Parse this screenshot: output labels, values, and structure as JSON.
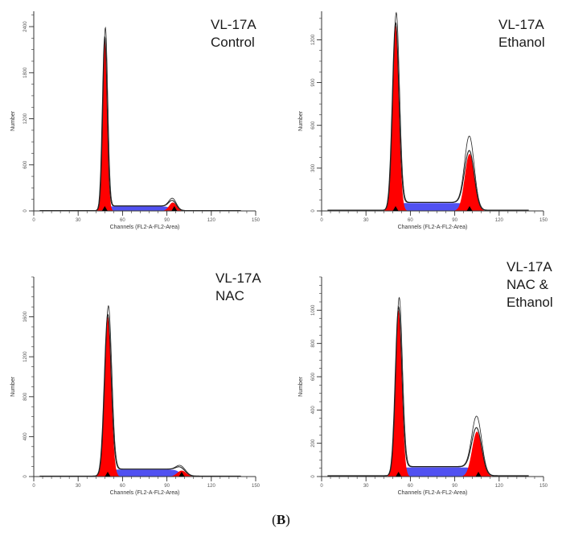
{
  "figure": {
    "panel_letter": "B",
    "colors": {
      "g1_g2_fill": "#ff0000",
      "s_phase_fill": "#3333ee",
      "histogram_line": "#222222",
      "axis": "#333333",
      "marker": "#000000"
    }
  },
  "chart_data": [
    {
      "type": "area",
      "condition_lines": [
        "VL-17A",
        "Control"
      ],
      "xlabel": "Channels (FL2-A-FL2-Area)",
      "ylabel": "Number",
      "xlim": [
        0,
        150
      ],
      "ylim": [
        0,
        2600
      ],
      "x_ticks": [
        0,
        30,
        60,
        90,
        120,
        150
      ],
      "y_ticks": [
        0,
        600,
        1200,
        1800,
        2400
      ],
      "g1_peak": {
        "channel": 48,
        "height": 2250,
        "width": 1.6
      },
      "g2_peak": {
        "channel": 94,
        "height": 110,
        "width": 2.5
      },
      "s_phase_level": 60,
      "markers": [
        48,
        95
      ]
    },
    {
      "type": "area",
      "condition_lines": [
        "VL-17A",
        "Ethanol"
      ],
      "xlabel": "Channels (FL2-A-FL2-Area)",
      "ylabel": "Number",
      "xlim": [
        0,
        150
      ],
      "ylim": [
        0,
        1400
      ],
      "x_ticks": [
        0,
        30,
        60,
        90,
        120,
        150
      ],
      "y_ticks": [
        0,
        300,
        600,
        900,
        1200
      ],
      "g1_peak": {
        "channel": 50,
        "height": 1300,
        "width": 2.2
      },
      "g2_peak": {
        "channel": 100,
        "height": 400,
        "width": 3.2
      },
      "s_phase_level": 55,
      "markers": [
        50,
        100
      ]
    },
    {
      "type": "area",
      "condition_lines": [
        "VL-17A",
        "NAC"
      ],
      "xlabel": "Channels (FL2-A-FL2-Area)",
      "ylabel": "Number",
      "xlim": [
        0,
        150
      ],
      "ylim": [
        0,
        2000
      ],
      "x_ticks": [
        0,
        30,
        60,
        90,
        120,
        150
      ],
      "y_ticks": [
        0,
        400,
        800,
        1200,
        1600
      ],
      "g1_peak": {
        "channel": 50,
        "height": 1600,
        "width": 2.3
      },
      "g2_peak": {
        "channel": 100,
        "height": 60,
        "width": 3.0
      },
      "s_phase_level": 70,
      "markers": [
        50,
        100
      ]
    },
    {
      "type": "area",
      "condition_lines": [
        "VL-17A",
        "NAC &",
        "Ethanol"
      ],
      "xlabel": "Channels (FL2-A-FL2-Area)",
      "ylabel": "Number",
      "xlim": [
        0,
        150
      ],
      "ylim": [
        0,
        1200
      ],
      "x_ticks": [
        0,
        30,
        60,
        90,
        120,
        150
      ],
      "y_ticks": [
        0,
        200,
        400,
        600,
        800,
        1000
      ],
      "g1_peak": {
        "channel": 52,
        "height": 1000,
        "width": 2.2
      },
      "g2_peak": {
        "channel": 105,
        "height": 270,
        "width": 3.3
      },
      "s_phase_level": 55,
      "markers": [
        52,
        106
      ]
    }
  ]
}
